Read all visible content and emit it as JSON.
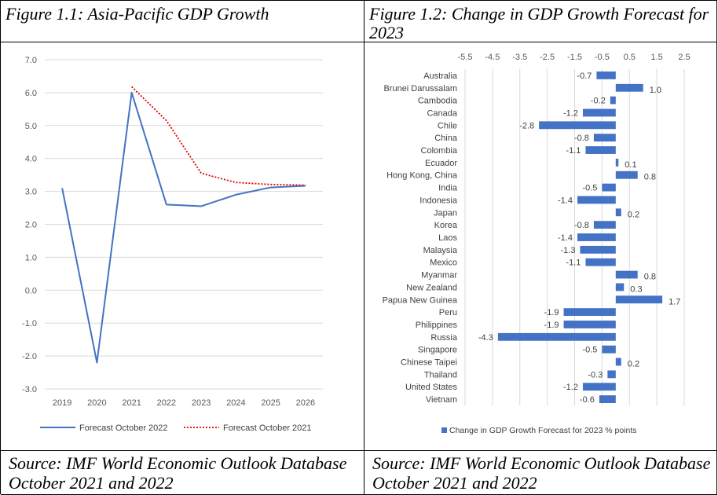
{
  "figures": {
    "left_title": "Figure 1.1: Asia-Pacific GDP Growth",
    "right_title": "Figure 1.2: Change in GDP Growth Forecast for 2023",
    "left_source": "Source: IMF World Economic Outlook Database October 2021 and 2022",
    "right_source": "Source: IMF World Economic Outlook Database October 2021 and 2022"
  },
  "chart_data": [
    {
      "type": "line",
      "title": "Figure 1.1: Asia-Pacific GDP Growth",
      "x": [
        "2019",
        "2020",
        "2021",
        "2022",
        "2023",
        "2024",
        "2025",
        "2026"
      ],
      "ylim": [
        -3.0,
        7.0
      ],
      "yticks": [
        "7.0",
        "6.0",
        "5.0",
        "4.0",
        "3.0",
        "2.0",
        "1.0",
        "0.0",
        "-1.0",
        "-2.0",
        "-3.0"
      ],
      "grid": true,
      "legend_position": "bottom",
      "series": [
        {
          "name": "Forecast October 2022",
          "style": "solid",
          "color": "#4472c4",
          "values": [
            3.1,
            -2.2,
            6.0,
            2.6,
            2.55,
            2.9,
            3.12,
            3.17
          ]
        },
        {
          "name": "Forecast October 2021",
          "style": "dotted",
          "color": "#e00000",
          "values": [
            null,
            null,
            6.18,
            5.15,
            3.55,
            3.27,
            3.21,
            3.19
          ]
        }
      ]
    },
    {
      "type": "bar",
      "orientation": "horizontal",
      "title": "Figure 1.2: Change in GDP Growth Forecast for 2023",
      "categories": [
        "Australia",
        "Brunei Darussalam",
        "Cambodia",
        "Canada",
        "Chile",
        "China",
        "Colombia",
        "Ecuador",
        "Hong Kong, China",
        "India",
        "Indonesia",
        "Japan",
        "Korea",
        "Laos",
        "Malaysia",
        "Mexico",
        "Myanmar",
        "New Zealand",
        "Papua New Guinea",
        "Peru",
        "Philippines",
        "Russia",
        "Singapore",
        "Chinese Taipei",
        "Thailand",
        "United States",
        "Vietnam"
      ],
      "values": [
        -0.7,
        1.0,
        -0.2,
        -1.2,
        -2.8,
        -0.8,
        -1.1,
        0.1,
        0.8,
        -0.5,
        -1.4,
        0.2,
        -0.8,
        -1.4,
        -1.3,
        -1.1,
        0.8,
        0.3,
        1.7,
        -1.9,
        -1.9,
        -4.3,
        -0.5,
        0.2,
        -0.3,
        -1.2,
        -0.6
      ],
      "value_labels": [
        "-0.7",
        "1.0",
        "-0.2",
        "-1.2",
        "-2.8",
        "-0.8",
        "-1.1",
        "0.1",
        "0.8",
        "-0.5",
        "-1.4",
        "0.2",
        "-0.8",
        "-1.4",
        "-1.3",
        "-1.1",
        "0.8",
        "0.3",
        "1.7",
        "-1.9",
        "-1.9",
        "-4.3",
        "-0.5",
        "0.2",
        "-0.3",
        "-1.2",
        "-0.6"
      ],
      "xlim": [
        -5.5,
        2.5
      ],
      "xticks": [
        "-5.5",
        "-4.5",
        "-3.5",
        "-2.5",
        "-1.5",
        "-0.5",
        "0.5",
        "1.5",
        "2.5"
      ],
      "grid": true,
      "color": "#4472c4",
      "legend_position": "bottom",
      "series": [
        {
          "name": "Change in GDP Growth Forecast for 2023 % points"
        }
      ]
    }
  ]
}
